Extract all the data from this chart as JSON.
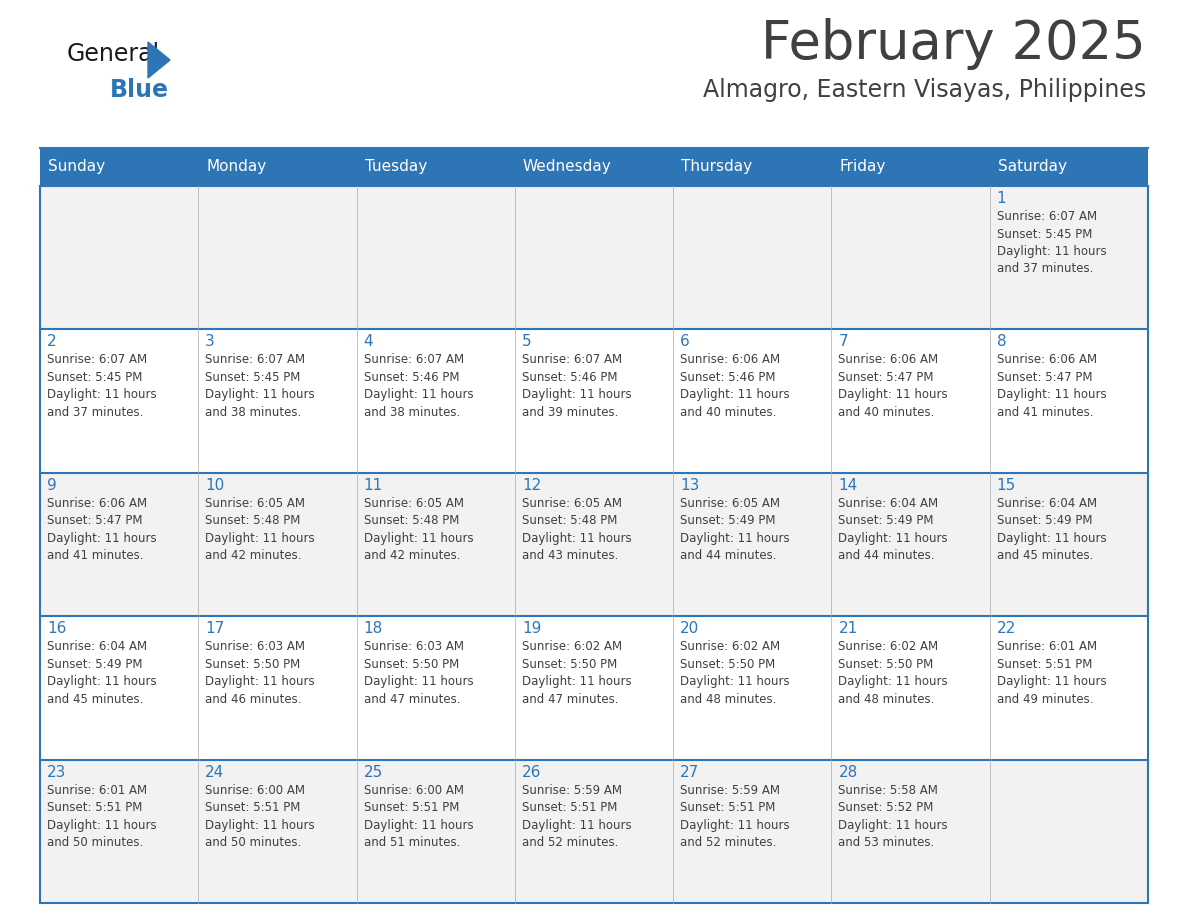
{
  "title": "February 2025",
  "subtitle": "Almagro, Eastern Visayas, Philippines",
  "header_bg": "#2E75B6",
  "header_text": "#FFFFFF",
  "cell_bg_white": "#FFFFFF",
  "cell_bg_gray": "#F2F2F2",
  "border_color": "#2E75B6",
  "inner_line_color": "#AAAAAA",
  "text_color": "#404040",
  "day_number_color": "#2E75B6",
  "days_of_week": [
    "Sunday",
    "Monday",
    "Tuesday",
    "Wednesday",
    "Thursday",
    "Friday",
    "Saturday"
  ],
  "weeks": [
    [
      {
        "day": 0,
        "text": ""
      },
      {
        "day": 0,
        "text": ""
      },
      {
        "day": 0,
        "text": ""
      },
      {
        "day": 0,
        "text": ""
      },
      {
        "day": 0,
        "text": ""
      },
      {
        "day": 0,
        "text": ""
      },
      {
        "day": 1,
        "text": "Sunrise: 6:07 AM\nSunset: 5:45 PM\nDaylight: 11 hours\nand 37 minutes."
      }
    ],
    [
      {
        "day": 2,
        "text": "Sunrise: 6:07 AM\nSunset: 5:45 PM\nDaylight: 11 hours\nand 37 minutes."
      },
      {
        "day": 3,
        "text": "Sunrise: 6:07 AM\nSunset: 5:45 PM\nDaylight: 11 hours\nand 38 minutes."
      },
      {
        "day": 4,
        "text": "Sunrise: 6:07 AM\nSunset: 5:46 PM\nDaylight: 11 hours\nand 38 minutes."
      },
      {
        "day": 5,
        "text": "Sunrise: 6:07 AM\nSunset: 5:46 PM\nDaylight: 11 hours\nand 39 minutes."
      },
      {
        "day": 6,
        "text": "Sunrise: 6:06 AM\nSunset: 5:46 PM\nDaylight: 11 hours\nand 40 minutes."
      },
      {
        "day": 7,
        "text": "Sunrise: 6:06 AM\nSunset: 5:47 PM\nDaylight: 11 hours\nand 40 minutes."
      },
      {
        "day": 8,
        "text": "Sunrise: 6:06 AM\nSunset: 5:47 PM\nDaylight: 11 hours\nand 41 minutes."
      }
    ],
    [
      {
        "day": 9,
        "text": "Sunrise: 6:06 AM\nSunset: 5:47 PM\nDaylight: 11 hours\nand 41 minutes."
      },
      {
        "day": 10,
        "text": "Sunrise: 6:05 AM\nSunset: 5:48 PM\nDaylight: 11 hours\nand 42 minutes."
      },
      {
        "day": 11,
        "text": "Sunrise: 6:05 AM\nSunset: 5:48 PM\nDaylight: 11 hours\nand 42 minutes."
      },
      {
        "day": 12,
        "text": "Sunrise: 6:05 AM\nSunset: 5:48 PM\nDaylight: 11 hours\nand 43 minutes."
      },
      {
        "day": 13,
        "text": "Sunrise: 6:05 AM\nSunset: 5:49 PM\nDaylight: 11 hours\nand 44 minutes."
      },
      {
        "day": 14,
        "text": "Sunrise: 6:04 AM\nSunset: 5:49 PM\nDaylight: 11 hours\nand 44 minutes."
      },
      {
        "day": 15,
        "text": "Sunrise: 6:04 AM\nSunset: 5:49 PM\nDaylight: 11 hours\nand 45 minutes."
      }
    ],
    [
      {
        "day": 16,
        "text": "Sunrise: 6:04 AM\nSunset: 5:49 PM\nDaylight: 11 hours\nand 45 minutes."
      },
      {
        "day": 17,
        "text": "Sunrise: 6:03 AM\nSunset: 5:50 PM\nDaylight: 11 hours\nand 46 minutes."
      },
      {
        "day": 18,
        "text": "Sunrise: 6:03 AM\nSunset: 5:50 PM\nDaylight: 11 hours\nand 47 minutes."
      },
      {
        "day": 19,
        "text": "Sunrise: 6:02 AM\nSunset: 5:50 PM\nDaylight: 11 hours\nand 47 minutes."
      },
      {
        "day": 20,
        "text": "Sunrise: 6:02 AM\nSunset: 5:50 PM\nDaylight: 11 hours\nand 48 minutes."
      },
      {
        "day": 21,
        "text": "Sunrise: 6:02 AM\nSunset: 5:50 PM\nDaylight: 11 hours\nand 48 minutes."
      },
      {
        "day": 22,
        "text": "Sunrise: 6:01 AM\nSunset: 5:51 PM\nDaylight: 11 hours\nand 49 minutes."
      }
    ],
    [
      {
        "day": 23,
        "text": "Sunrise: 6:01 AM\nSunset: 5:51 PM\nDaylight: 11 hours\nand 50 minutes."
      },
      {
        "day": 24,
        "text": "Sunrise: 6:00 AM\nSunset: 5:51 PM\nDaylight: 11 hours\nand 50 minutes."
      },
      {
        "day": 25,
        "text": "Sunrise: 6:00 AM\nSunset: 5:51 PM\nDaylight: 11 hours\nand 51 minutes."
      },
      {
        "day": 26,
        "text": "Sunrise: 5:59 AM\nSunset: 5:51 PM\nDaylight: 11 hours\nand 52 minutes."
      },
      {
        "day": 27,
        "text": "Sunrise: 5:59 AM\nSunset: 5:51 PM\nDaylight: 11 hours\nand 52 minutes."
      },
      {
        "day": 28,
        "text": "Sunrise: 5:58 AM\nSunset: 5:52 PM\nDaylight: 11 hours\nand 53 minutes."
      },
      {
        "day": 0,
        "text": ""
      }
    ]
  ],
  "row_bg_colors": [
    "#F2F2F2",
    "#FFFFFF",
    "#F2F2F2",
    "#FFFFFF",
    "#F2F2F2"
  ],
  "logo_general_color": "#1A1A1A",
  "logo_blue_color": "#2E75B6",
  "triangle_color": "#2E75B6"
}
